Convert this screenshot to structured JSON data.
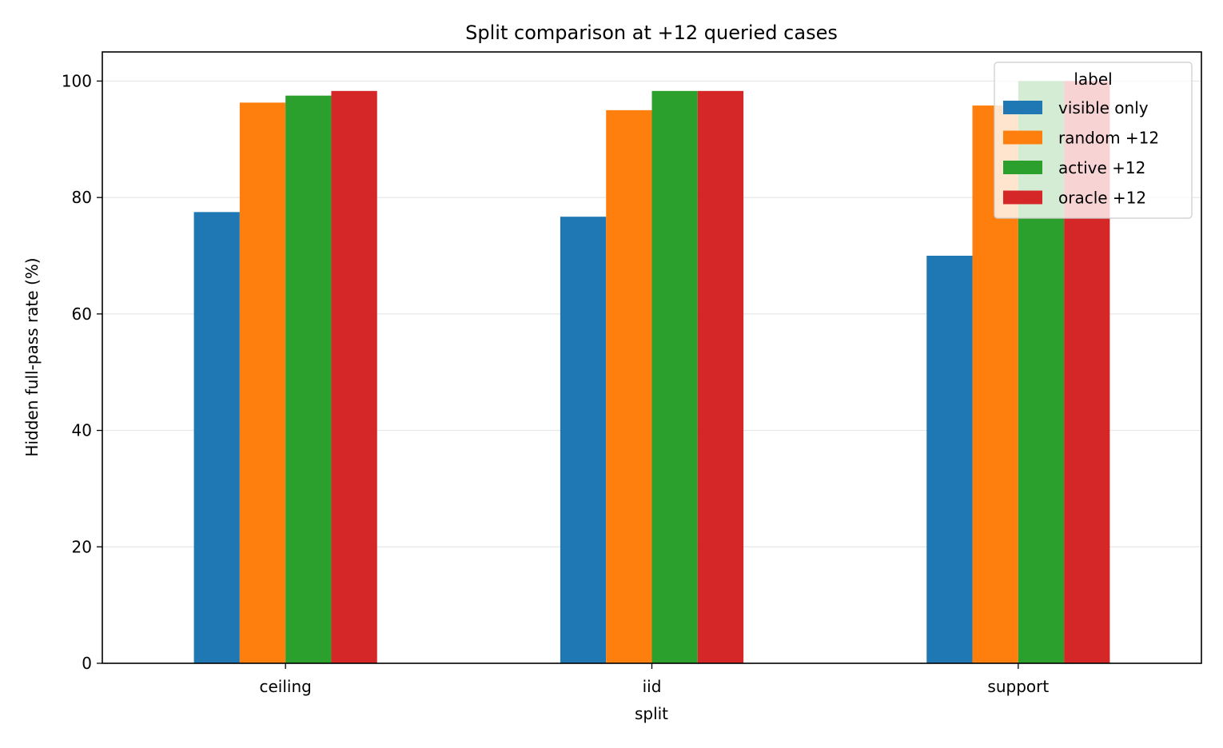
{
  "chart_data": {
    "type": "bar",
    "title": "Split comparison at +12 queried cases",
    "xlabel": "split",
    "ylabel": "Hidden full-pass rate (%)",
    "categories": [
      "ceiling",
      "iid",
      "support"
    ],
    "ylim": [
      0,
      105
    ],
    "yticks": [
      0,
      20,
      40,
      60,
      80,
      100
    ],
    "grid": "horizontal",
    "legend": {
      "title": "label",
      "placement": "top-right"
    },
    "series": [
      {
        "name": "visible only",
        "color": "#1f77b4",
        "values": [
          77.5,
          76.7,
          70.0
        ]
      },
      {
        "name": "random +12",
        "color": "#ff7f0e",
        "values": [
          96.3,
          95.0,
          95.8
        ]
      },
      {
        "name": "active +12",
        "color": "#2ca02c",
        "values": [
          97.5,
          98.3,
          100.0
        ]
      },
      {
        "name": "oracle +12",
        "color": "#d62728",
        "values": [
          98.3,
          98.3,
          100.0
        ]
      }
    ]
  }
}
